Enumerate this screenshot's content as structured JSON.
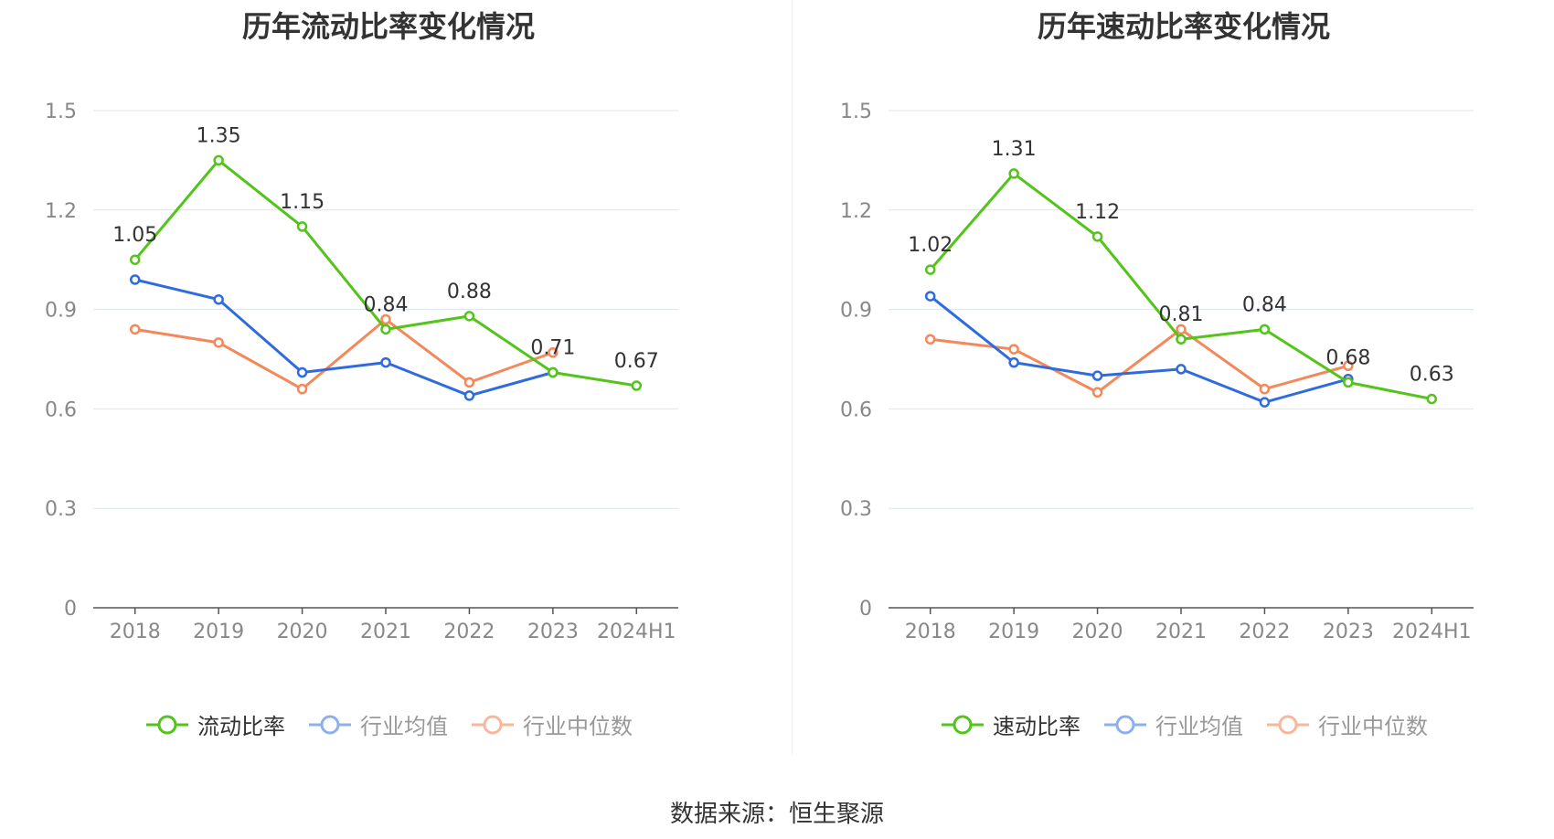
{
  "source": "数据来源：恒生聚源",
  "colors": {
    "main": "#52c41a",
    "avg": "#2f6bde",
    "median": "#f5885a",
    "grid": "#dce3f0",
    "axis": "#555555",
    "label": "#888888"
  },
  "chart_data": [
    {
      "type": "line",
      "title": "历年流动比率变化情况",
      "categories": [
        "2018",
        "2019",
        "2020",
        "2021",
        "2022",
        "2023",
        "2024H1"
      ],
      "ylim": [
        0,
        1.5
      ],
      "yticks": [
        "0",
        "0.3",
        "0.6",
        "0.9",
        "1.2",
        "1.5"
      ],
      "grid": true,
      "legend_position": "bottom",
      "series": [
        {
          "name": "流动比率",
          "values": [
            1.05,
            1.35,
            1.15,
            0.84,
            0.88,
            0.71,
            0.67
          ],
          "labels": [
            "1.05",
            "1.35",
            "1.15",
            "0.84",
            "0.88",
            "0.71",
            "0.67"
          ]
        },
        {
          "name": "行业均值",
          "values": [
            0.99,
            0.93,
            0.71,
            0.74,
            0.64,
            0.71,
            null
          ]
        },
        {
          "name": "行业中位数",
          "values": [
            0.84,
            0.8,
            0.66,
            0.87,
            0.68,
            0.77,
            null
          ]
        }
      ]
    },
    {
      "type": "line",
      "title": "历年速动比率变化情况",
      "categories": [
        "2018",
        "2019",
        "2020",
        "2021",
        "2022",
        "2023",
        "2024H1"
      ],
      "ylim": [
        0,
        1.5
      ],
      "yticks": [
        "0",
        "0.3",
        "0.6",
        "0.9",
        "1.2",
        "1.5"
      ],
      "grid": true,
      "legend_position": "bottom",
      "series": [
        {
          "name": "速动比率",
          "values": [
            1.02,
            1.31,
            1.12,
            0.81,
            0.84,
            0.68,
            0.63
          ],
          "labels": [
            "1.02",
            "1.31",
            "1.12",
            "0.81",
            "0.84",
            "0.68",
            "0.63"
          ]
        },
        {
          "name": "行业均值",
          "values": [
            0.94,
            0.74,
            0.7,
            0.72,
            0.62,
            0.69,
            null
          ]
        },
        {
          "name": "行业中位数",
          "values": [
            0.81,
            0.78,
            0.65,
            0.84,
            0.66,
            0.73,
            null
          ]
        }
      ]
    }
  ]
}
